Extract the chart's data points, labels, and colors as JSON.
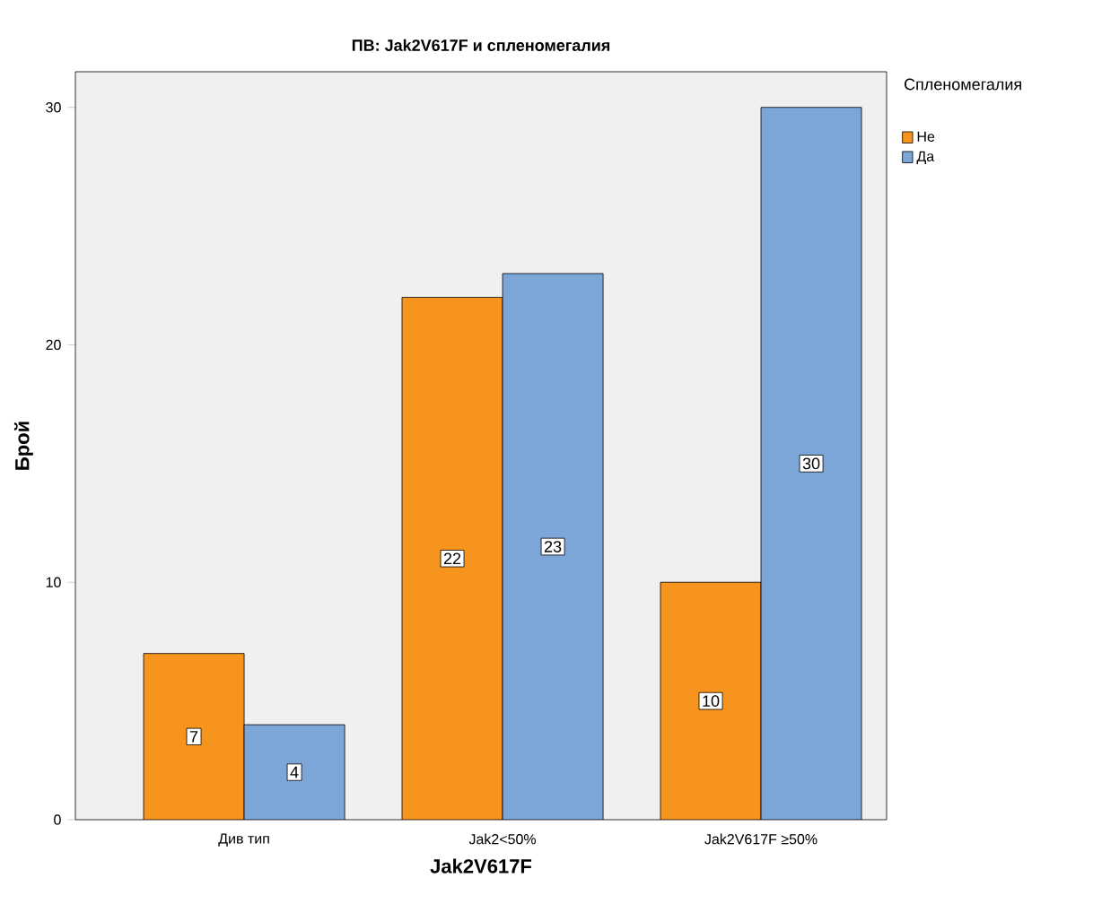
{
  "chart_data": {
    "type": "bar",
    "title": "ПВ: Jak2V617F и спленомегалия",
    "xlabel": "Jak2V617F",
    "ylabel": "Брой",
    "legend_title": "Спленомегалия",
    "categories": [
      "Див тип",
      "Jak2<50%",
      "Jak2V617F ≥50%"
    ],
    "series": [
      {
        "name": "Не",
        "color": "#f7941e",
        "values": [
          7,
          22,
          10
        ]
      },
      {
        "name": "Да",
        "color": "#7ca6d8",
        "values": [
          4,
          23,
          30
        ]
      }
    ],
    "ylim": [
      0,
      31.5
    ],
    "yticks": [
      0,
      10,
      20,
      30
    ],
    "data_labels": true,
    "legend": "right",
    "grid": false
  }
}
